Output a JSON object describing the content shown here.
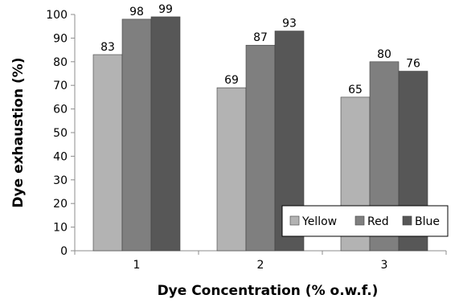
{
  "chart_data": {
    "type": "bar",
    "title": "",
    "xlabel": "Dye Concentration (% o.w.f.)",
    "ylabel": "Dye exhaustion (%)",
    "categories": [
      "1",
      "2",
      "3"
    ],
    "ylim": [
      0,
      100
    ],
    "yticks": [
      0,
      10,
      20,
      30,
      40,
      50,
      60,
      70,
      80,
      90,
      100
    ],
    "grid": false,
    "legend_position": "bottom-right",
    "series": [
      {
        "name": "Yellow",
        "values": [
          83,
          69,
          65
        ],
        "color": "#b3b3b3"
      },
      {
        "name": "Red",
        "values": [
          98,
          87,
          80
        ],
        "color": "#7f7f7f"
      },
      {
        "name": "Blue",
        "values": [
          99,
          93,
          76
        ],
        "color": "#575757"
      }
    ]
  }
}
